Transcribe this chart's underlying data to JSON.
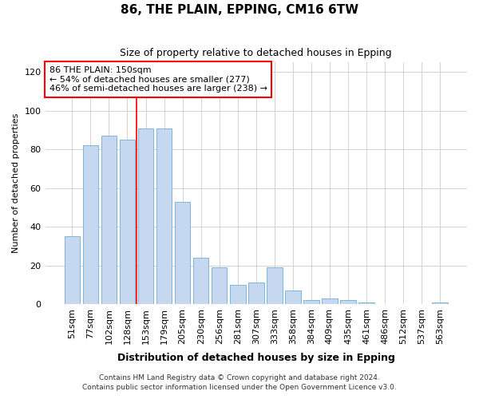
{
  "title1": "86, THE PLAIN, EPPING, CM16 6TW",
  "title2": "Size of property relative to detached houses in Epping",
  "xlabel": "Distribution of detached houses by size in Epping",
  "ylabel": "Number of detached properties",
  "categories": [
    "51sqm",
    "77sqm",
    "102sqm",
    "128sqm",
    "153sqm",
    "179sqm",
    "205sqm",
    "230sqm",
    "256sqm",
    "281sqm",
    "307sqm",
    "333sqm",
    "358sqm",
    "384sqm",
    "409sqm",
    "435sqm",
    "461sqm",
    "486sqm",
    "512sqm",
    "537sqm",
    "563sqm"
  ],
  "values": [
    35,
    82,
    87,
    85,
    91,
    91,
    53,
    24,
    19,
    10,
    11,
    19,
    7,
    2,
    3,
    2,
    1,
    0,
    0,
    0,
    1
  ],
  "bar_color": "#c5d8f0",
  "bar_edgecolor": "#6baed6",
  "annotation_text_line1": "86 THE PLAIN: 150sqm",
  "annotation_text_line2": "← 54% of detached houses are smaller (277)",
  "annotation_text_line3": "46% of semi-detached houses are larger (238) →",
  "annotation_box_edgecolor": "red",
  "vline_color": "red",
  "vline_xindex": 3.5,
  "ylim": [
    0,
    125
  ],
  "yticks": [
    0,
    20,
    40,
    60,
    80,
    100,
    120
  ],
  "grid_color": "#cccccc",
  "background_color": "#ffffff",
  "footer_line1": "Contains HM Land Registry data © Crown copyright and database right 2024.",
  "footer_line2": "Contains public sector information licensed under the Open Government Licence v3.0."
}
